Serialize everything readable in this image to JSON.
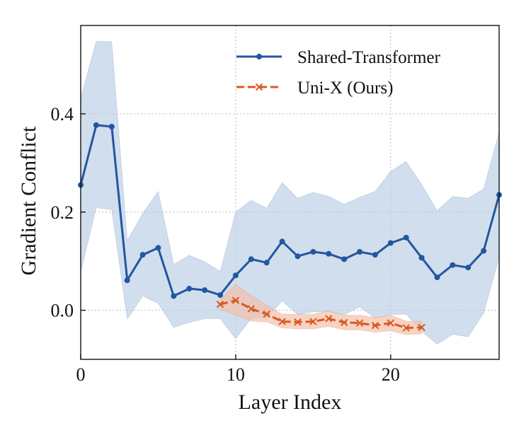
{
  "chart_data": {
    "type": "line",
    "xlabel": "Layer Index",
    "ylabel": "Gradient Conflict",
    "xlim": [
      0,
      27
    ],
    "ylim": [
      -0.1,
      0.58
    ],
    "xticks": [
      0,
      10,
      20
    ],
    "yticks": [
      0.0,
      0.2,
      0.4
    ],
    "xtick_labels": [
      "0",
      "10",
      "20"
    ],
    "ytick_labels": [
      "0.0",
      "0.2",
      "0.4"
    ],
    "grid": "dotted",
    "legend_position": "top-right",
    "series": [
      {
        "name": "Shared-Transformer",
        "color": "#2356a0",
        "band_color": "#b9cde3",
        "marker": "dot",
        "line_style": "solid",
        "x": [
          0,
          1,
          2,
          3,
          4,
          5,
          6,
          7,
          8,
          9,
          10,
          11,
          12,
          13,
          14,
          15,
          16,
          17,
          18,
          19,
          20,
          21,
          22,
          23,
          24,
          25,
          26,
          27
        ],
        "y": [
          0.255,
          0.377,
          0.374,
          0.061,
          0.113,
          0.127,
          0.029,
          0.044,
          0.041,
          0.031,
          0.071,
          0.104,
          0.097,
          0.14,
          0.11,
          0.119,
          0.115,
          0.104,
          0.119,
          0.113,
          0.137,
          0.148,
          0.107,
          0.067,
          0.092,
          0.087,
          0.121,
          0.235
        ],
        "upper": [
          0.432,
          0.548,
          0.547,
          0.142,
          0.197,
          0.242,
          0.093,
          0.112,
          0.099,
          0.079,
          0.2,
          0.224,
          0.208,
          0.26,
          0.228,
          0.24,
          0.232,
          0.216,
          0.23,
          0.242,
          0.283,
          0.303,
          0.256,
          0.203,
          0.232,
          0.228,
          0.247,
          0.363
        ],
        "lower": [
          0.078,
          0.209,
          0.205,
          -0.018,
          0.029,
          0.014,
          -0.035,
          -0.025,
          -0.017,
          -0.017,
          -0.058,
          -0.017,
          -0.015,
          0.019,
          -0.009,
          -0.003,
          -0.003,
          -0.009,
          0.007,
          -0.016,
          -0.009,
          -0.008,
          -0.043,
          -0.069,
          -0.049,
          -0.054,
          -0.006,
          0.107
        ]
      },
      {
        "name": "Uni-X (Ours)",
        "color": "#d85a22",
        "band_color": "#f4c0a9",
        "marker": "x",
        "line_style": "dashed",
        "x": [
          9,
          10,
          11,
          12,
          13,
          14,
          15,
          16,
          17,
          18,
          19,
          20,
          21,
          22
        ],
        "y": [
          0.012,
          0.02,
          0.003,
          -0.008,
          -0.023,
          -0.024,
          -0.023,
          -0.017,
          -0.025,
          -0.026,
          -0.031,
          -0.026,
          -0.036,
          -0.035
        ],
        "upper": [
          0.022,
          0.052,
          0.03,
          0.01,
          -0.008,
          -0.008,
          -0.008,
          -0.001,
          -0.01,
          -0.01,
          -0.015,
          -0.01,
          -0.022,
          -0.023
        ],
        "lower": [
          0.002,
          -0.01,
          -0.022,
          -0.024,
          -0.036,
          -0.038,
          -0.038,
          -0.033,
          -0.04,
          -0.04,
          -0.045,
          -0.042,
          -0.05,
          -0.048
        ]
      }
    ]
  }
}
